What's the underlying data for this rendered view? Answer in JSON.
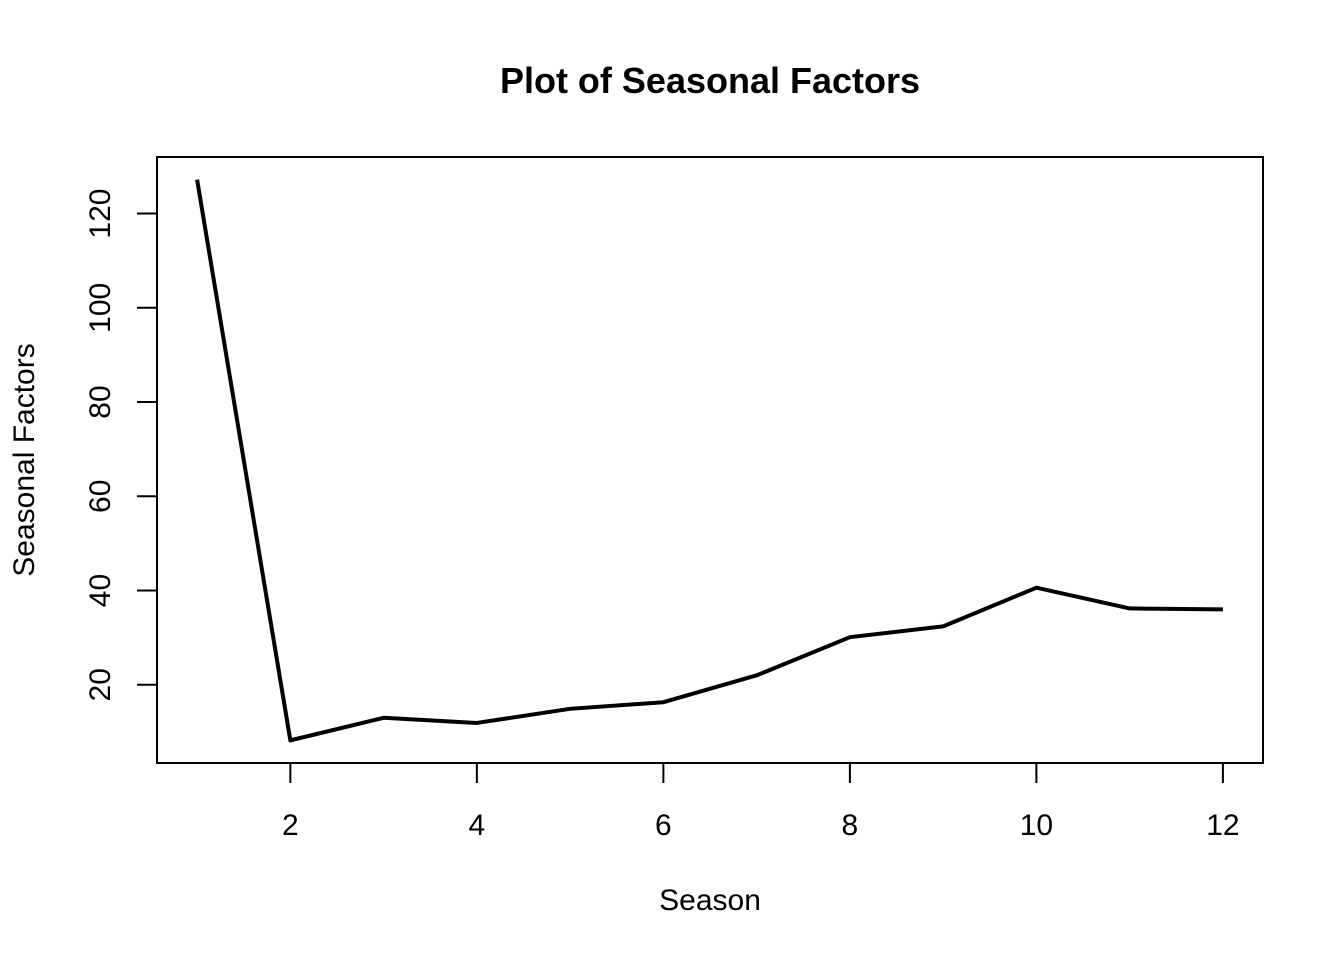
{
  "chart_data": {
    "type": "line",
    "title": "Plot of Seasonal Factors",
    "xlabel": "Season",
    "ylabel": "Seasonal Factors",
    "x": [
      1,
      2,
      3,
      4,
      5,
      6,
      7,
      8,
      9,
      10,
      11,
      12
    ],
    "series": [
      {
        "values": [
          127.2,
          8.2,
          13.0,
          11.9,
          14.9,
          16.3,
          22.0,
          30.1,
          32.4,
          40.6,
          36.2,
          36.0
        ]
      }
    ],
    "xlim": [
      0.57,
      12.43
    ],
    "ylim": [
      3.4,
      132.0
    ],
    "xticks": [
      2,
      4,
      6,
      8,
      10,
      12
    ],
    "xtick_labels": [
      "2",
      "4",
      "6",
      "8",
      "10",
      "12"
    ],
    "yticks": [
      20,
      40,
      60,
      80,
      100,
      120
    ],
    "ytick_labels": [
      "20",
      "40",
      "60",
      "80",
      "100",
      "120"
    ],
    "grid": false,
    "line_color": "#000000"
  }
}
